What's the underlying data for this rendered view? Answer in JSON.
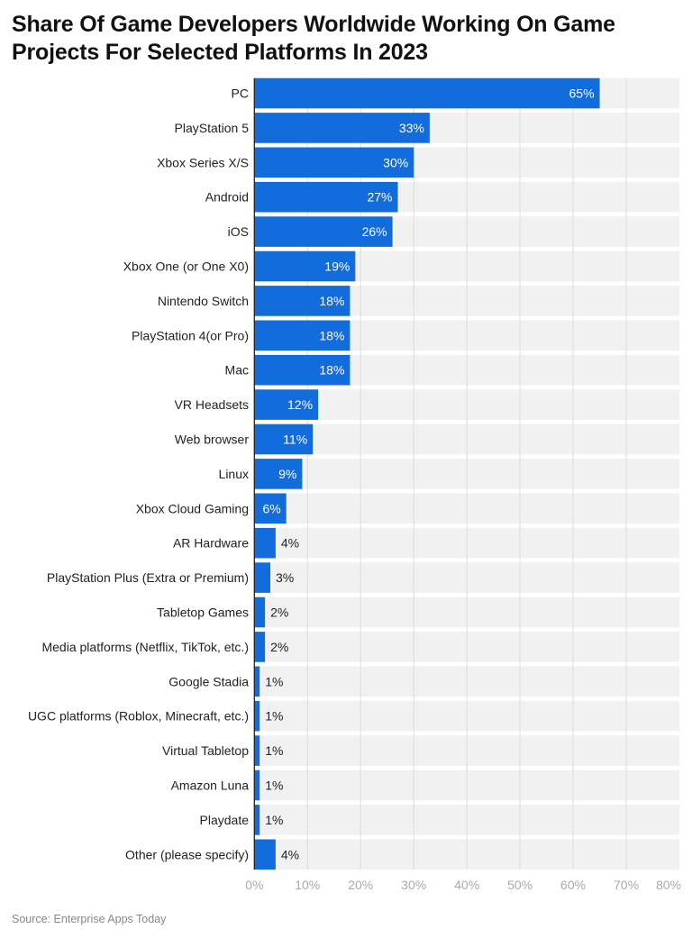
{
  "chart_data": {
    "type": "bar",
    "orientation": "horizontal",
    "title": "Share Of Game Developers Worldwide Working On Game Projects For Selected Platforms In 2023",
    "categories": [
      "PC",
      "PlayStation 5",
      "Xbox Series X/S",
      "Android",
      "iOS",
      "Xbox One (or One X0)",
      "Nintendo Switch",
      "PlayStation 4(or Pro)",
      "Mac",
      "VR Headsets",
      "Web browser",
      "Linux",
      "Xbox Cloud Gaming",
      "AR Hardware",
      "PlayStation Plus (Extra or Premium)",
      "Tabletop Games",
      "Media platforms (Netflix, TikTok, etc.)",
      "Google Stadia",
      "UGC platforms (Roblox, Minecraft, etc.)",
      "Virtual Tabletop",
      "Amazon Luna",
      "Playdate",
      "Other (please specify)"
    ],
    "values": [
      65,
      33,
      30,
      27,
      26,
      19,
      18,
      18,
      18,
      12,
      11,
      9,
      6,
      4,
      3,
      2,
      2,
      1,
      1,
      1,
      1,
      1,
      4
    ],
    "value_suffix": "%",
    "xlim": [
      0,
      80
    ],
    "xticks": [
      "0%",
      "10%",
      "20%",
      "30%",
      "40%",
      "50%",
      "60%",
      "70%",
      "80%"
    ],
    "xlabel": "",
    "ylabel": "",
    "grid": true,
    "bar_color": "#136cdb",
    "row_background": "#f1f1f1",
    "source": "Source: Enterprise Apps Today"
  }
}
